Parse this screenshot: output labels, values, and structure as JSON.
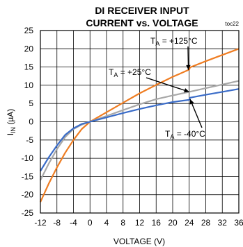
{
  "chart_data": {
    "type": "line",
    "title": [
      "DI RECEIVER INPUT",
      "CURRENT vs. VOLTAGE"
    ],
    "figure_code": "toc22",
    "xlabel": "VOLTAGE (V)",
    "ylabel": {
      "main": "I",
      "sub": "IN",
      "rest": " (µA)"
    },
    "xlim": [
      -12,
      36
    ],
    "ylim": [
      -25,
      25
    ],
    "xticks": [
      -12,
      -8,
      -4,
      0,
      4,
      8,
      12,
      16,
      20,
      24,
      28,
      32,
      36
    ],
    "yticks": [
      25,
      20,
      15,
      10,
      5,
      0,
      -5,
      -10,
      -15,
      -20,
      -25
    ],
    "grid": true,
    "series": [
      {
        "name": "T_A = +125°C",
        "color": "#ef7d22",
        "x": [
          -12,
          -10,
          -8,
          -6,
          -4,
          -2,
          0,
          4,
          8,
          12,
          16,
          20,
          24,
          24.2,
          28,
          32,
          36
        ],
        "y": [
          -22,
          -17,
          -12.5,
          -8.5,
          -5,
          -2,
          0,
          2.6,
          5.2,
          7.8,
          10.1,
          12.3,
          14.3,
          14.9,
          16.6,
          18.3,
          20
        ]
      },
      {
        "name": "T_A = +25°C",
        "color": "#a8a8a8",
        "x": [
          -12,
          -10,
          -8,
          -6,
          -4,
          -2,
          0,
          4,
          8,
          12,
          16,
          20,
          24,
          28,
          32,
          36
        ],
        "y": [
          -16,
          -11.5,
          -7.5,
          -4.2,
          -2,
          -0.8,
          0,
          1.6,
          3.2,
          4.8,
          6.2,
          7.2,
          8.2,
          9.2,
          10.2,
          11.2
        ]
      },
      {
        "name": "T_A = -40°C",
        "color": "#3a6cc8",
        "x": [
          -12,
          -10,
          -8,
          -6,
          -4,
          -2,
          0,
          4,
          8,
          12,
          16,
          20,
          24,
          24.2,
          28,
          32,
          36
        ],
        "y": [
          -13.5,
          -9.8,
          -6.5,
          -3.6,
          -1.8,
          -0.6,
          0,
          1.2,
          2.4,
          3.5,
          4.5,
          5.4,
          6,
          6.6,
          7.4,
          8.2,
          9
        ]
      }
    ],
    "annotations": [
      {
        "main": "T",
        "sub": "A",
        "rest": " = +125°C",
        "series": 0,
        "target": [
          23.8,
          14.2
        ]
      },
      {
        "main": "T",
        "sub": "A",
        "rest": " = +25°C",
        "series": 1,
        "target": [
          24,
          8.2
        ]
      },
      {
        "main": "T",
        "sub": "A",
        "rest": " = -40°C",
        "series": 2,
        "target": [
          24.2,
          6.2
        ]
      }
    ]
  }
}
